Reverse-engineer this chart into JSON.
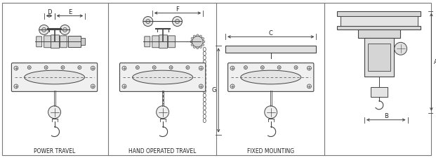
{
  "bg_color": "#ffffff",
  "border_color": "#777777",
  "line_color": "#444444",
  "dark_color": "#222222",
  "panel_labels": [
    "POWER TRAVEL",
    "HAND OPERATED TRAVEL",
    "FIXED MOUNTING",
    ""
  ],
  "fig_width": 6.21,
  "fig_height": 2.25,
  "dpi": 100
}
